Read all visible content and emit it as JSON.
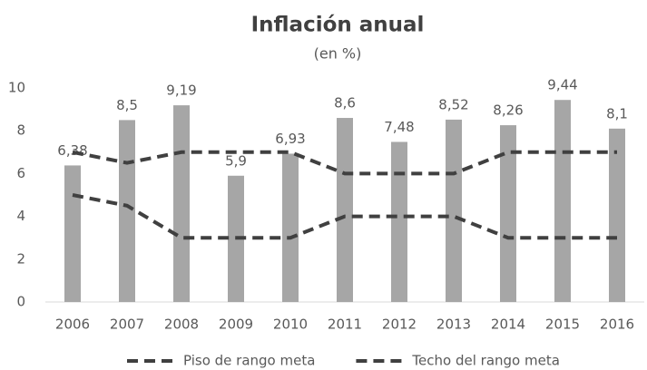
{
  "chart_data": {
    "type": "bar",
    "title": "Inflación anual",
    "subtitle": "(en %)",
    "categories": [
      "2006",
      "2007",
      "2008",
      "2009",
      "2010",
      "2011",
      "2012",
      "2013",
      "2014",
      "2015",
      "2016"
    ],
    "values": [
      6.38,
      8.5,
      9.19,
      5.9,
      6.93,
      8.6,
      7.48,
      8.52,
      8.26,
      9.44,
      8.1
    ],
    "value_labels": [
      "6,38",
      "8,5",
      "9,19",
      "5,9",
      "6,93",
      "8,6",
      "7,48",
      "8,52",
      "8,26",
      "9,44",
      "8,1"
    ],
    "color": "#a6a6a6",
    "series": [
      {
        "name": "Piso de rango meta",
        "type": "line",
        "color": "#404040",
        "values": [
          5,
          4.5,
          3,
          3,
          3,
          4,
          4,
          4,
          3,
          3,
          3
        ]
      },
      {
        "name": "Techo del rango meta",
        "type": "line",
        "color": "#404040",
        "values": [
          7,
          6.5,
          7,
          7,
          7,
          6,
          6,
          6,
          7,
          7,
          7
        ]
      }
    ],
    "ylim": [
      0,
      10
    ],
    "yticks": [
      0,
      2,
      4,
      6,
      8,
      10
    ],
    "grid": false,
    "legend": "bottom"
  }
}
